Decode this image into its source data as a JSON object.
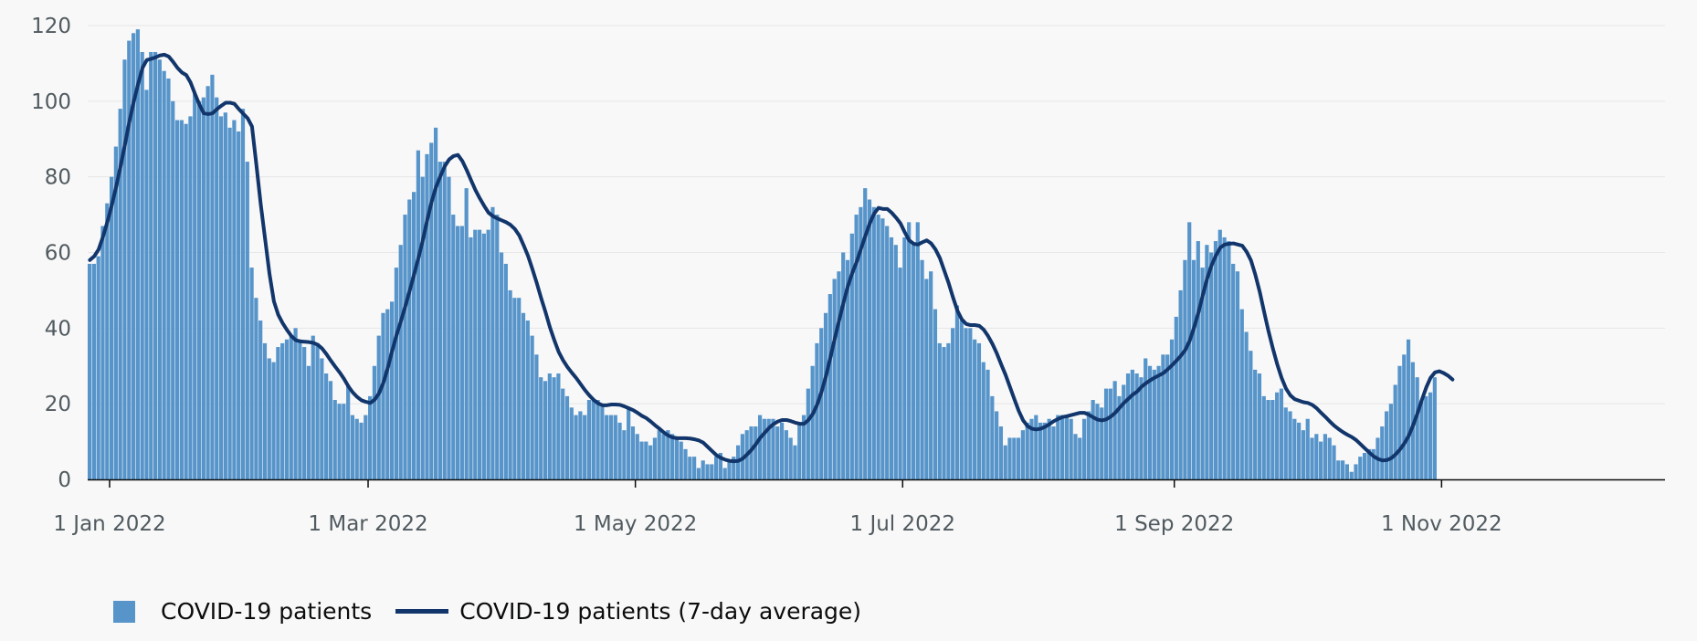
{
  "colors": {
    "bar": "#5694ca",
    "line": "#12366b",
    "grid": "#e6e6e6",
    "axis": "#0b0c0c",
    "text": "#505a5f",
    "background": "#f8f8f8"
  },
  "legend": {
    "bar_label": "COVID-19 patients",
    "line_label": "COVID-19 patients (7-day average)"
  },
  "chart_data": {
    "type": "bar",
    "title": "",
    "xlabel": "",
    "ylabel": "",
    "ylim": [
      0,
      120
    ],
    "y_ticks": [
      0,
      20,
      40,
      60,
      80,
      100,
      120
    ],
    "x_tick_labels": [
      "1 Jan 2022",
      "1 Mar 2022",
      "1 May 2022",
      "1 Jul 2022",
      "1 Sep 2022",
      "1 Nov 2022"
    ],
    "x_tick_dates": [
      "2022-01-01",
      "2022-03-01",
      "2022-05-01",
      "2022-07-01",
      "2022-09-01",
      "2022-11-01"
    ],
    "x_range": [
      "2021-12-27",
      "2022-12-22"
    ],
    "grid": true,
    "legend_position": "bottom-left",
    "series": [
      {
        "name": "COVID-19 patients",
        "type": "bar",
        "x_start": "2021-12-27",
        "x_step": "1 day",
        "values": [
          57,
          57,
          59,
          67,
          73,
          80,
          88,
          98,
          111,
          116,
          118,
          119,
          113,
          103,
          113,
          113,
          111,
          108,
          106,
          100,
          95,
          95,
          94,
          96,
          102,
          100,
          101,
          104,
          107,
          101,
          96,
          97,
          93,
          95,
          92,
          98,
          84,
          56,
          48,
          42,
          36,
          32,
          31,
          35,
          36,
          37,
          38,
          40,
          37,
          35,
          30,
          38,
          36,
          32,
          28,
          26,
          21,
          20,
          20,
          25,
          17,
          16,
          15,
          17,
          22,
          30,
          38,
          44,
          45,
          47,
          56,
          62,
          70,
          74,
          76,
          87,
          80,
          86,
          89,
          93,
          84,
          84,
          80,
          70,
          67,
          67,
          77,
          64,
          66,
          66,
          65,
          66,
          72,
          70,
          60,
          57,
          50,
          48,
          48,
          44,
          42,
          38,
          33,
          27,
          26,
          28,
          27,
          28,
          24,
          22,
          19,
          17,
          18,
          17,
          21,
          21,
          21,
          20,
          17,
          17,
          17,
          15,
          13,
          19,
          14,
          12,
          10,
          10,
          9,
          11,
          13,
          12,
          13,
          12,
          11,
          10,
          8,
          6,
          6,
          3,
          5,
          4,
          4,
          6,
          7,
          3,
          5,
          6,
          9,
          12,
          13,
          14,
          14,
          17,
          16,
          16,
          16,
          14,
          15,
          13,
          11,
          9,
          15,
          17,
          24,
          30,
          36,
          40,
          44,
          49,
          53,
          55,
          60,
          58,
          65,
          70,
          72,
          77,
          74,
          72,
          70,
          69,
          67,
          64,
          62,
          56,
          64,
          68,
          62,
          68,
          58,
          53,
          55,
          45,
          36,
          35,
          36,
          40,
          46,
          42,
          40,
          40,
          37,
          36,
          31,
          29,
          22,
          18,
          14,
          9,
          11,
          11,
          11,
          13,
          15,
          16,
          17,
          15,
          15,
          16,
          14,
          17,
          17,
          17,
          16,
          12,
          11,
          16,
          18,
          21,
          20,
          19,
          24,
          24,
          26,
          22,
          25,
          28,
          29,
          28,
          27,
          32,
          30,
          29,
          30,
          33,
          33,
          37,
          43,
          50,
          58,
          68,
          58,
          63,
          56,
          62,
          60,
          63,
          66,
          64,
          63,
          57,
          55,
          45,
          39,
          34,
          29,
          28,
          22,
          21,
          21,
          23,
          24,
          19,
          18,
          16,
          15,
          13,
          16,
          11,
          12,
          10,
          12,
          11,
          9,
          5,
          5,
          4,
          2,
          4,
          6,
          7,
          8,
          8,
          11,
          14,
          18,
          20,
          25,
          30,
          33,
          37,
          31,
          27,
          21,
          22,
          23,
          27
        ],
        "color": "#5694ca"
      },
      {
        "name": "COVID-19 patients (7-day average)",
        "type": "line",
        "x_start": "2021-12-27",
        "x_step": "1 day",
        "values": [
          58.0,
          59.0,
          60.8,
          64.2,
          68.1,
          72.5,
          77.4,
          82.8,
          88.5,
          94.5,
          99.8,
          104.5,
          108.8,
          110.9,
          111.2,
          111.6,
          112.1,
          112.3,
          111.8,
          110.4,
          108.8,
          107.6,
          106.9,
          104.9,
          101.9,
          99.1,
          96.8,
          96.6,
          96.8,
          97.9,
          98.8,
          99.6,
          99.6,
          99.3,
          97.9,
          96.7,
          95.5,
          93.3,
          83.2,
          72.7,
          63.5,
          54.3,
          47.1,
          43.5,
          41.3,
          39.5,
          37.9,
          36.8,
          36.5,
          36.4,
          36.3,
          36.1,
          35.6,
          34.6,
          33.1,
          31.4,
          29.8,
          28.3,
          26.6,
          24.6,
          23.0,
          21.8,
          20.9,
          20.5,
          20.2,
          21.1,
          22.8,
          25.6,
          29.5,
          34.0,
          38.2,
          41.9,
          45.8,
          49.9,
          54.2,
          58.6,
          63.3,
          68.6,
          73.4,
          77.3,
          80.2,
          82.8,
          84.6,
          85.5,
          85.8,
          84.2,
          81.8,
          79.1,
          76.5,
          74.3,
          72.3,
          70.5,
          69.6,
          69.0,
          68.5,
          68.0,
          67.3,
          66.2,
          64.5,
          61.9,
          59.1,
          55.6,
          51.9,
          47.9,
          44.2,
          40.2,
          36.8,
          33.7,
          31.5,
          29.7,
          28.2,
          26.8,
          25.2,
          23.6,
          22.2,
          21.0,
          20.1,
          19.6,
          19.6,
          19.8,
          19.8,
          19.7,
          19.3,
          18.8,
          18.3,
          17.6,
          16.8,
          16.2,
          15.3,
          14.3,
          13.4,
          12.4,
          11.6,
          11.1,
          10.9,
          10.9,
          10.9,
          10.8,
          10.6,
          10.3,
          9.7,
          8.6,
          7.5,
          6.4,
          5.7,
          5.2,
          4.9,
          4.8,
          4.9,
          5.5,
          6.6,
          7.8,
          9.3,
          11.0,
          12.3,
          13.6,
          14.6,
          15.3,
          15.7,
          15.7,
          15.4,
          15.0,
          14.7,
          14.7,
          15.7,
          17.3,
          19.8,
          23.2,
          27.3,
          32.2,
          37.2,
          42.0,
          46.7,
          51.1,
          54.6,
          57.5,
          61.0,
          64.4,
          67.7,
          70.3,
          71.8,
          71.5,
          71.5,
          70.5,
          69.2,
          67.7,
          65.3,
          63.2,
          62.3,
          62.1,
          62.7,
          63.2,
          62.4,
          60.8,
          58.5,
          55.2,
          51.9,
          48.1,
          44.6,
          42.3,
          41.1,
          40.8,
          40.8,
          40.6,
          39.6,
          37.9,
          35.8,
          33.3,
          30.4,
          27.6,
          24.4,
          21.2,
          18.1,
          15.6,
          14.1,
          13.4,
          13.2,
          13.4,
          13.9,
          14.6,
          15.4,
          16.0,
          16.5,
          16.7,
          17.0,
          17.3,
          17.6,
          17.6,
          17.1,
          16.4,
          15.8,
          15.6,
          15.9,
          16.6,
          17.6,
          18.9,
          20.2,
          21.3,
          22.4,
          23.2,
          24.5,
          25.4,
          26.2,
          26.9,
          27.5,
          28.1,
          29.1,
          30.2,
          31.4,
          32.7,
          34.2,
          36.6,
          40.1,
          44.1,
          48.7,
          53.1,
          56.6,
          59.2,
          61.3,
          62.1,
          62.3,
          62.4,
          62.1,
          61.8,
          60.2,
          57.9,
          54.1,
          49.6,
          44.3,
          39.2,
          34.6,
          30.4,
          26.8,
          24.0,
          22.2,
          21.2,
          20.8,
          20.4,
          20.2,
          19.7,
          18.8,
          17.6,
          16.5,
          15.3,
          14.2,
          13.3,
          12.5,
          11.8,
          11.2,
          10.4,
          9.3,
          8.2,
          7.1,
          6.1,
          5.4,
          5.0,
          5.1,
          5.6,
          6.6,
          7.9,
          9.5,
          11.5,
          14.3,
          17.5,
          21.0,
          24.3,
          26.9,
          28.3,
          28.6,
          28.1,
          27.4,
          26.4
        ]
      }
    ]
  }
}
